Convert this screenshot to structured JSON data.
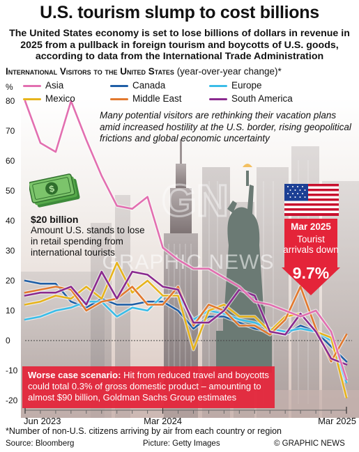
{
  "title": "U.S. tourism slump to cost billions",
  "subtitle": "The United States economy is set to lose billions of dollars in revenue in 2025 from a pullback in foreign tourism and boycotts of U.S. goods, according to data from the International Trade Administration",
  "chart_heading": {
    "main": "International Visitors to the United States",
    "sub": " (year-over-year change)*"
  },
  "annotation": "Many potential visitors are rethinking their vacation plans amid increased hostility at the U.S. border, rising geopolitical frictions and global economic uncertainty",
  "retail": {
    "amount": "$20 billion",
    "desc": "Amount U.S. stands to lose in retail spending from international tourists"
  },
  "callout": {
    "date": "Mar 2025",
    "text": "Tourist arrivals down",
    "value": "9.7%"
  },
  "worst_case": {
    "lead": "Worse case scenario:",
    "text": " Hit from reduced travel and boycotts could total 0.3% of gross domestic product – amounting to almost $90 billion, Goldman Sachs Group estimates"
  },
  "footnote": "*Number of non-U.S. citizens arriving by air from each country or region",
  "source": "Source: Bloomberg",
  "credit": "Picture: Getty Images",
  "copyright": "© GRAPHIC NEWS",
  "watermark": {
    "logo": "GN",
    "text": "GRAPHIC NEWS"
  },
  "colors": {
    "Asia": "#e26fb0",
    "Canada": "#1f5fa6",
    "Europe": "#3bbde8",
    "Mexico": "#e7b41c",
    "Middle East": "#e2792e",
    "South America": "#8a2a8f",
    "accent": "#e42439"
  },
  "chart_data": {
    "type": "line",
    "title": "International Visitors to the United States",
    "subtitle": "(year-over-year change)*",
    "ylabel": "%",
    "ylim": [
      -20,
      80
    ],
    "yticks": [
      80,
      70,
      60,
      50,
      40,
      30,
      20,
      10,
      0,
      -10,
      -20
    ],
    "xticks": [
      "Jun 2023",
      "Mar 2024",
      "Mar 2025"
    ],
    "x": [
      "Jun 2023",
      "Jul 2023",
      "Aug 2023",
      "Sep 2023",
      "Oct 2023",
      "Nov 2023",
      "Dec 2023",
      "Jan 2024",
      "Feb 2024",
      "Mar 2024",
      "Apr 2024",
      "May 2024",
      "Jun 2024",
      "Jul 2024",
      "Aug 2024",
      "Sep 2024",
      "Oct 2024",
      "Nov 2024",
      "Dec 2024",
      "Jan 2025",
      "Feb 2025",
      "Mar 2025"
    ],
    "legend": [
      "Asia",
      "Canada",
      "Europe",
      "Mexico",
      "Middle East",
      "South America"
    ],
    "series": [
      {
        "name": "Asia",
        "values": [
          80,
          66,
          63,
          80,
          67,
          55,
          45,
          44,
          48,
          31,
          27,
          24,
          24,
          21,
          18,
          13,
          12,
          10,
          8,
          10,
          3,
          -13
        ]
      },
      {
        "name": "Canada",
        "values": [
          20,
          19,
          19,
          13,
          11,
          14,
          12,
          12,
          13,
          13,
          10,
          4,
          8,
          8,
          6,
          4,
          3,
          2,
          5,
          3,
          -2,
          -7
        ]
      },
      {
        "name": "Europe",
        "values": [
          7,
          8,
          10,
          11,
          13,
          13,
          8,
          11,
          10,
          15,
          15,
          7,
          10,
          9,
          7,
          6,
          4,
          3,
          4,
          3,
          0,
          -14
        ]
      },
      {
        "name": "Mexico",
        "values": [
          12,
          13,
          15,
          14,
          18,
          14,
          26,
          16,
          20,
          15,
          15,
          -3,
          10,
          12,
          8,
          8,
          3,
          8,
          9,
          3,
          1,
          -19
        ]
      },
      {
        "name": "Middle East",
        "values": [
          16,
          17,
          18,
          17,
          10,
          13,
          14,
          18,
          12,
          12,
          18,
          5,
          12,
          10,
          5,
          5,
          2,
          7,
          18,
          4,
          -7,
          2
        ]
      },
      {
        "name": "South America",
        "values": [
          15,
          16,
          16,
          18,
          12,
          23,
          14,
          23,
          22,
          18,
          17,
          6,
          6,
          10,
          17,
          15,
          3,
          2,
          9,
          3,
          -6,
          -8
        ]
      }
    ]
  }
}
